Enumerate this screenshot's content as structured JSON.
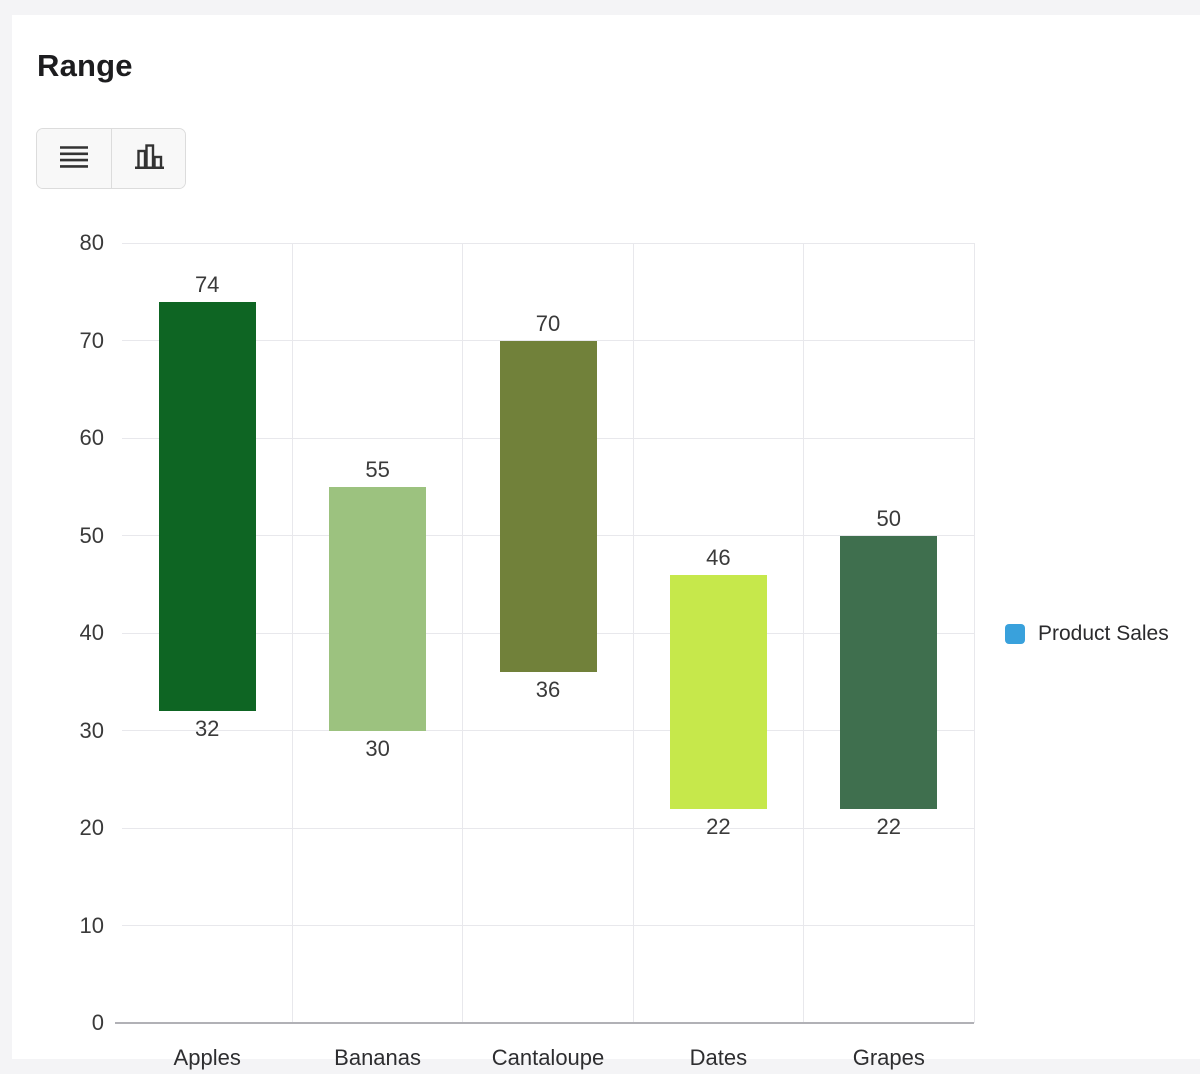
{
  "page": {
    "title": "Range"
  },
  "toolbar": {
    "buttons": [
      {
        "id": "table-view",
        "icon": "list-icon"
      },
      {
        "id": "chart-view",
        "icon": "bar-chart-icon"
      }
    ]
  },
  "chart_data": {
    "type": "bar",
    "subtype": "range-column",
    "title": "Range",
    "categories": [
      "Apples",
      "Bananas",
      "Cantaloupe",
      "Dates",
      "Grapes"
    ],
    "series": [
      {
        "name": "Product Sales",
        "data": [
          {
            "low": 32,
            "high": 74
          },
          {
            "low": 30,
            "high": 55
          },
          {
            "low": 36,
            "high": 70
          },
          {
            "low": 22,
            "high": 46
          },
          {
            "low": 22,
            "high": 50
          }
        ],
        "bar_colors": [
          "#0e6523",
          "#9cc27f",
          "#71813a",
          "#c6e84b",
          "#3f6f4e"
        ]
      }
    ],
    "xlabel": "",
    "ylabel": "",
    "ylim": [
      0,
      80
    ],
    "ytick_step": 10,
    "grid": true,
    "legend_position": "right"
  },
  "legend": {
    "label": "Product Sales",
    "swatch_color": "#39a1dc"
  },
  "colors": {
    "page_background": "#f4f4f6",
    "card_background": "#ffffff",
    "gridline": "#e8e8ec",
    "axis_line": "#b1b1b6",
    "text": "#3a3a3a"
  }
}
